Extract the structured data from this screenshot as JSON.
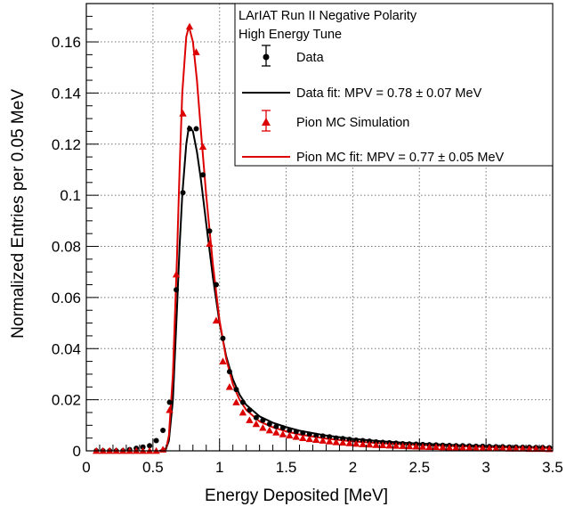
{
  "chart_data": {
    "type": "scatter",
    "xlabel": "Energy Deposited [MeV]",
    "ylabel": "Normalized Entries per 0.05 MeV",
    "xlim": [
      0,
      3.5
    ],
    "ylim": [
      0,
      0.175
    ],
    "xticks": [
      0,
      0.5,
      1,
      1.5,
      2,
      2.5,
      3,
      3.5
    ],
    "xtick_labels": [
      "0",
      "0.5",
      "1",
      "1.5",
      "2",
      "2.5",
      "3",
      "3.5"
    ],
    "yticks": [
      0,
      0.02,
      0.04,
      0.06,
      0.08,
      0.1,
      0.12,
      0.14,
      0.16
    ],
    "ytick_labels": [
      "0",
      "0.02",
      "0.04",
      "0.06",
      "0.08",
      "0.1",
      "0.12",
      "0.14",
      "0.16"
    ],
    "grid": true,
    "legend": {
      "position": "top-right",
      "header": [
        "LArIAT Run II Negative Polarity",
        "High Energy Tune"
      ],
      "entries": [
        {
          "label": "Data",
          "marker": "circle-errorbar",
          "color": "#000000"
        },
        {
          "label": "Data fit: MPV = 0.78 ± 0.07 MeV",
          "marker": "line",
          "color": "#000000"
        },
        {
          "label": "Pion MC Simulation",
          "marker": "triangle-errorbar",
          "color": "#dd0000"
        },
        {
          "label": "Pion MC fit: MPV = 0.77 ± 0.05 MeV",
          "marker": "line",
          "color": "#dd0000"
        }
      ]
    },
    "series": [
      {
        "name": "Data",
        "style": "points",
        "marker": "circle",
        "color": "#000000",
        "x": [
          0.075,
          0.125,
          0.175,
          0.225,
          0.275,
          0.325,
          0.375,
          0.425,
          0.475,
          0.525,
          0.575,
          0.625,
          0.675,
          0.725,
          0.775,
          0.825,
          0.875,
          0.925,
          0.975,
          1.025,
          1.075,
          1.125,
          1.175,
          1.225,
          1.275,
          1.325,
          1.375,
          1.425,
          1.475,
          1.525,
          1.575,
          1.625,
          1.675,
          1.725,
          1.775,
          1.825,
          1.875,
          1.925,
          1.975,
          2.025,
          2.075,
          2.125,
          2.175,
          2.225,
          2.275,
          2.325,
          2.375,
          2.425,
          2.475,
          2.525,
          2.575,
          2.625,
          2.675,
          2.725,
          2.775,
          2.825,
          2.875,
          2.925,
          2.975,
          3.025,
          3.075,
          3.125,
          3.175,
          3.225,
          3.275,
          3.325,
          3.375,
          3.425,
          3.475
        ],
        "y": [
          0,
          0,
          0,
          0,
          0,
          0.0005,
          0.001,
          0.0015,
          0.002,
          0.004,
          0.008,
          0.019,
          0.063,
          0.101,
          0.126,
          0.126,
          0.108,
          0.086,
          0.065,
          0.044,
          0.031,
          0.024,
          0.019,
          0.016,
          0.013,
          0.012,
          0.0105,
          0.0095,
          0.009,
          0.008,
          0.0075,
          0.007,
          0.0065,
          0.006,
          0.0058,
          0.0055,
          0.005,
          0.0048,
          0.0045,
          0.0042,
          0.004,
          0.0038,
          0.0035,
          0.0033,
          0.0032,
          0.003,
          0.0028,
          0.0027,
          0.0026,
          0.0025,
          0.0024,
          0.0023,
          0.0022,
          0.0021,
          0.002,
          0.002,
          0.0019,
          0.0018,
          0.0018,
          0.0017,
          0.0016,
          0.0016,
          0.0015,
          0.0015,
          0.0014,
          0.0014,
          0.0013,
          0.0013,
          0.0012
        ]
      },
      {
        "name": "Pion MC Simulation",
        "style": "points",
        "marker": "triangle",
        "color": "#dd0000",
        "x": [
          0.075,
          0.125,
          0.175,
          0.225,
          0.275,
          0.325,
          0.375,
          0.425,
          0.475,
          0.525,
          0.575,
          0.625,
          0.675,
          0.725,
          0.775,
          0.825,
          0.875,
          0.925,
          0.975,
          1.025,
          1.075,
          1.125,
          1.175,
          1.225,
          1.275,
          1.325,
          1.375,
          1.425,
          1.475,
          1.525,
          1.575,
          1.625,
          1.675,
          1.725,
          1.775,
          1.825,
          1.875,
          1.925,
          1.975,
          2.025,
          2.075,
          2.125,
          2.175,
          2.225,
          2.275,
          2.325,
          2.375,
          2.425,
          2.475,
          2.525,
          2.575,
          2.625,
          2.675,
          2.725,
          2.775,
          2.825,
          2.875,
          2.925,
          2.975,
          3.025,
          3.075,
          3.125,
          3.175,
          3.225,
          3.275,
          3.325,
          3.375,
          3.425,
          3.475
        ],
        "y": [
          0,
          0,
          0,
          0,
          0,
          0,
          0,
          0,
          0,
          0,
          0.0005,
          0.016,
          0.069,
          0.132,
          0.166,
          0.156,
          0.119,
          0.081,
          0.051,
          0.035,
          0.025,
          0.019,
          0.015,
          0.012,
          0.0105,
          0.009,
          0.008,
          0.0072,
          0.0065,
          0.006,
          0.0055,
          0.005,
          0.0046,
          0.0043,
          0.004,
          0.0037,
          0.0034,
          0.0032,
          0.003,
          0.0028,
          0.0026,
          0.0025,
          0.0023,
          0.0022,
          0.0021,
          0.002,
          0.0019,
          0.0018,
          0.0017,
          0.0016,
          0.0015,
          0.0015,
          0.0014,
          0.0013,
          0.0013,
          0.0012,
          0.0012,
          0.0011,
          0.0011,
          0.001,
          0.001,
          0.001,
          0.0009,
          0.0009,
          0.0009,
          0.0008,
          0.0008,
          0.0008,
          0.0007
        ]
      },
      {
        "name": "Data fit: MPV = 0.78 ± 0.07 MeV",
        "style": "line",
        "color": "#000000",
        "x": [
          0.55,
          0.6,
          0.62,
          0.65,
          0.68,
          0.7,
          0.72,
          0.75,
          0.77,
          0.8,
          0.83,
          0.86,
          0.9,
          0.95,
          1.0,
          1.05,
          1.1,
          1.15,
          1.2,
          1.3,
          1.4,
          1.5,
          1.6,
          1.8,
          2.0,
          2.2,
          2.4,
          2.6,
          2.8,
          3.0,
          3.2,
          3.5
        ],
        "y": [
          0,
          0.001,
          0.004,
          0.02,
          0.055,
          0.08,
          0.1,
          0.12,
          0.127,
          0.125,
          0.117,
          0.106,
          0.089,
          0.068,
          0.05,
          0.037,
          0.028,
          0.022,
          0.018,
          0.0135,
          0.011,
          0.0093,
          0.0079,
          0.006,
          0.0047,
          0.0038,
          0.0031,
          0.0026,
          0.0022,
          0.0019,
          0.0016,
          0.0013
        ]
      },
      {
        "name": "Pion MC fit: MPV = 0.77 ± 0.05 MeV",
        "style": "line",
        "color": "#dd0000",
        "x": [
          0.58,
          0.6,
          0.62,
          0.65,
          0.68,
          0.7,
          0.72,
          0.75,
          0.77,
          0.8,
          0.83,
          0.86,
          0.9,
          0.95,
          1.0,
          1.05,
          1.1,
          1.15,
          1.2,
          1.3,
          1.4,
          1.5,
          1.6,
          1.8,
          2.0,
          2.2,
          2.4,
          2.6,
          2.8,
          3.0,
          3.2,
          3.5
        ],
        "y": [
          0,
          0.001,
          0.006,
          0.03,
          0.075,
          0.11,
          0.14,
          0.162,
          0.166,
          0.16,
          0.145,
          0.125,
          0.1,
          0.073,
          0.051,
          0.036,
          0.026,
          0.02,
          0.016,
          0.0115,
          0.0092,
          0.0076,
          0.0064,
          0.0048,
          0.0037,
          0.003,
          0.0025,
          0.0021,
          0.0018,
          0.0015,
          0.0013,
          0.0011
        ]
      }
    ]
  }
}
